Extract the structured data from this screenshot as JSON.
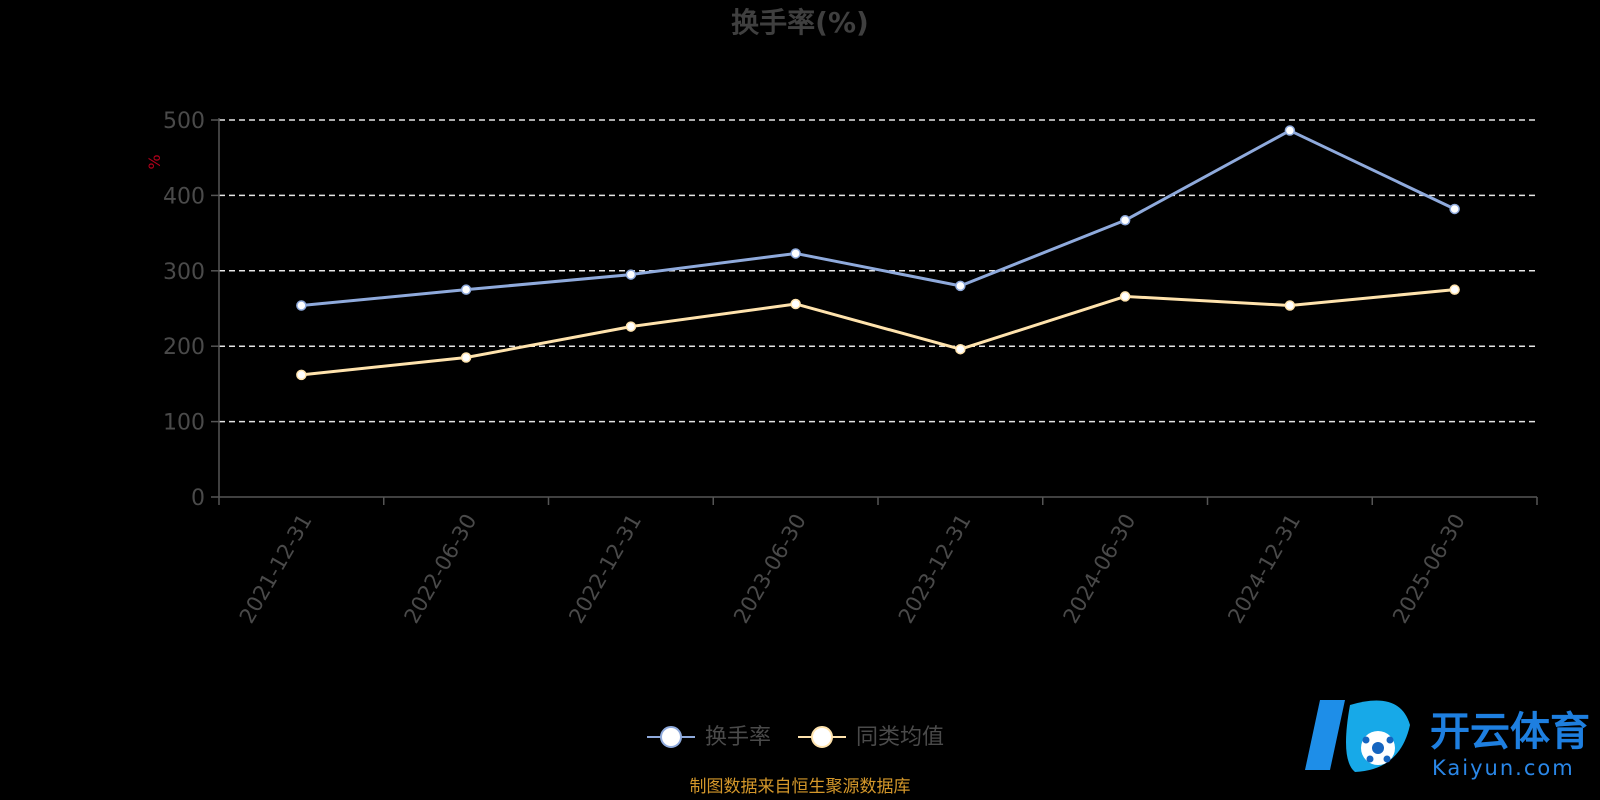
{
  "chart_data": {
    "type": "line",
    "title": "换手率(%)",
    "ylabel": "%",
    "ylim": [
      0,
      500
    ],
    "yticks": [
      0,
      100,
      200,
      300,
      400,
      500
    ],
    "categories": [
      "2021-12-31",
      "2022-06-30",
      "2022-12-31",
      "2023-06-30",
      "2023-12-31",
      "2024-06-30",
      "2024-12-31",
      "2025-06-30"
    ],
    "grid": true,
    "legend_position": "bottom",
    "series": [
      {
        "name": "换手率",
        "color": "#8faadc",
        "values": [
          254,
          275,
          295,
          323,
          280,
          367,
          486,
          382
        ]
      },
      {
        "name": "同类均值",
        "color": "#ffe3ad",
        "values": [
          162,
          185,
          226,
          256,
          196,
          266,
          254,
          275
        ]
      }
    ]
  },
  "footer": {
    "source": "制图数据来自恒生聚源数据库"
  },
  "watermark": {
    "logo_cn": "开云体育",
    "logo_en": "Kaiyun.com"
  }
}
